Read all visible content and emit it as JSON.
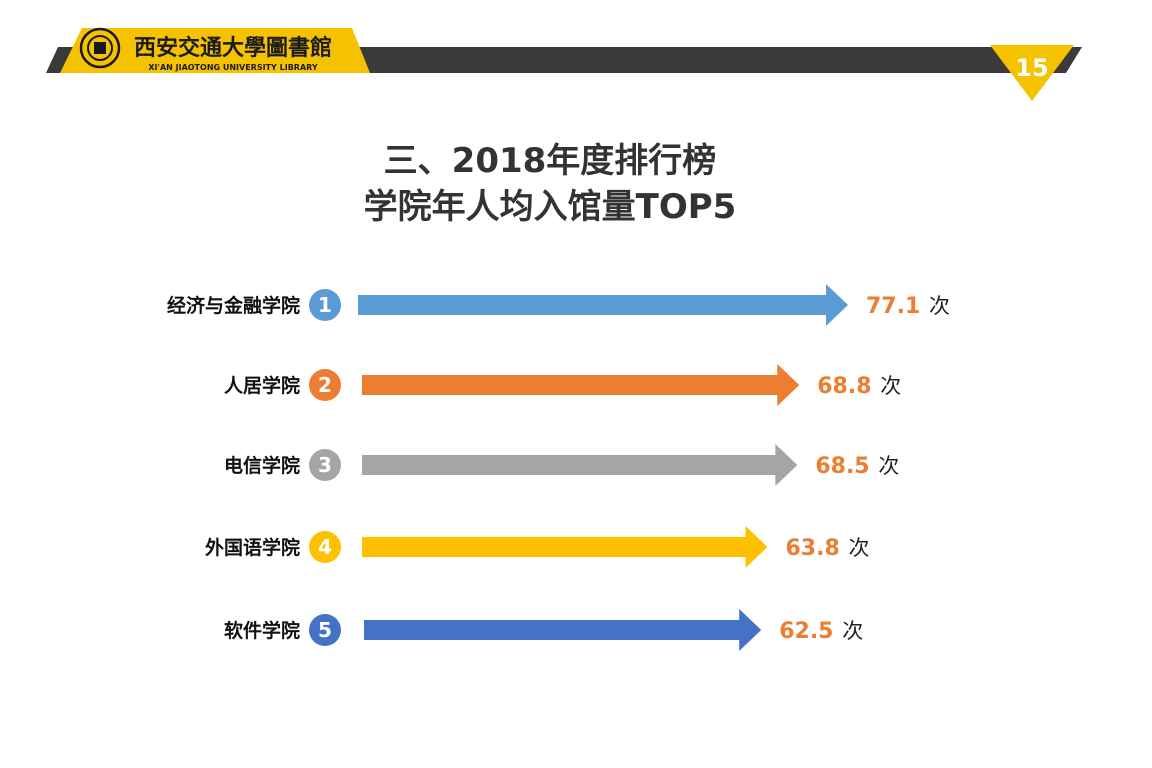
{
  "header": {
    "logo_cn": "西安交通大學圖書館",
    "logo_en": "XI'AN JIAOTONG UNIVERSITY LIBRARY",
    "page_number": "15",
    "colors": {
      "accent": "#F5C200",
      "dark": "#3A3A3A"
    }
  },
  "title": {
    "line1": "三、2018年度排行榜",
    "line2": "学院年人均入馆量TOP5"
  },
  "chart_data": {
    "type": "bar",
    "orientation": "horizontal",
    "categories": [
      "经济与金融学院",
      "人居学院",
      "电信学院",
      "外国语学院",
      "软件学院"
    ],
    "ranks": [
      "1",
      "2",
      "3",
      "4",
      "5"
    ],
    "values": [
      77.1,
      68.8,
      68.5,
      63.8,
      62.5
    ],
    "value_labels": [
      "77.1",
      "68.8",
      "68.5",
      "63.8",
      "62.5"
    ],
    "unit": "次",
    "colors": [
      "#5B9BD5",
      "#ED7D31",
      "#A5A5A5",
      "#FFC000",
      "#4472C4"
    ],
    "value_label_color": "#ED7D31"
  }
}
